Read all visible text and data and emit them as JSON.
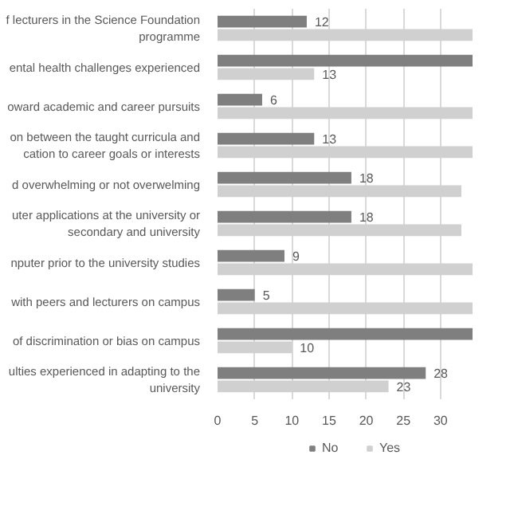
{
  "chart_data": {
    "type": "bar",
    "orientation": "horizontal",
    "categories": [
      "f lecturers in the Science Foundation\nprogramme",
      "ental health challenges experienced",
      "oward academic and career pursuits",
      "on between the taught curricula and\ncation to career goals or interests",
      "d overwhelming or not overwelming",
      "uter applications at the university or\nsecondary and university",
      "nputer prior to the university studies",
      "with peers and lecturers on campus",
      "of discrimination or bias on campus",
      "ulties experienced in adapting to the\nuniversity"
    ],
    "series": [
      {
        "name": "No",
        "color": "#7f7f7f",
        "values": [
          12,
          34.3,
          6,
          13,
          18,
          18,
          9,
          5,
          34.3,
          28
        ],
        "value_labels": [
          "12",
          null,
          "6",
          "13",
          "18",
          "18",
          "9",
          "5",
          null,
          "28"
        ]
      },
      {
        "name": "Yes",
        "color": "#d0d0d0",
        "values": [
          34.3,
          13,
          34.3,
          34.3,
          32.8,
          32.8,
          34.3,
          34.3,
          10,
          23
        ],
        "value_labels": [
          null,
          "13",
          null,
          null,
          null,
          null,
          null,
          null,
          "10",
          "23"
        ]
      }
    ],
    "xlim": [
      0,
      34.3
    ],
    "xticks": [
      0,
      5,
      10,
      15,
      20,
      25,
      30
    ],
    "grid": "x",
    "legend": "bottom"
  }
}
